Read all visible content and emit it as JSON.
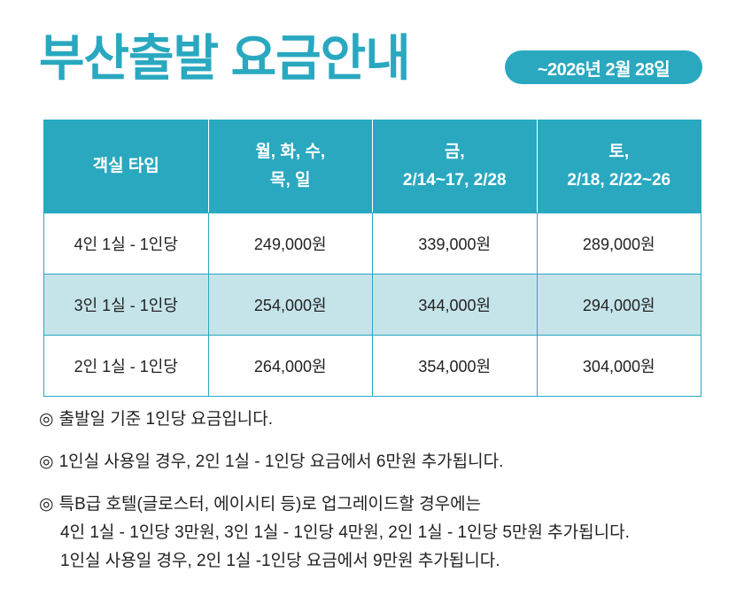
{
  "title": "부산출발 요금안내",
  "period_badge": "~2026년 2월 28일",
  "colors": {
    "accent": "#29a8c0",
    "highlight_row": "#c5e4ea"
  },
  "table": {
    "headers": [
      [
        "객실 타입"
      ],
      [
        "월, 화, 수,",
        "목, 일"
      ],
      [
        "금,",
        "2/14~17, 2/28"
      ],
      [
        "토,",
        "2/18, 2/22~26"
      ]
    ],
    "rows": [
      [
        "4인 1실 - 1인당",
        "249,000원",
        "339,000원",
        "289,000원"
      ],
      [
        "3인 1실 - 1인당",
        "254,000원",
        "344,000원",
        "294,000원"
      ],
      [
        "2인 1실 - 1인당",
        "264,000원",
        "354,000원",
        "304,000원"
      ]
    ]
  },
  "notes": {
    "marker": "◎",
    "items": [
      {
        "line": "출발일 기준 1인당 요금입니다."
      },
      {
        "line": "1인실 사용일 경우, 2인 1실 - 1인당 요금에서 6만원 추가됩니다."
      },
      {
        "line": "특B급 호텔(글로스터, 에이시티 등)로 업그레이드할 경우에는",
        "sub1": "4인 1실 - 1인당 3만원, 3인 1실 - 1인당 4만원, 2인 1실 - 1인당 5만원 추가됩니다.",
        "sub2": "1인실 사용일 경우, 2인 1실 -1인당 요금에서 9만원 추가됩니다."
      }
    ]
  }
}
